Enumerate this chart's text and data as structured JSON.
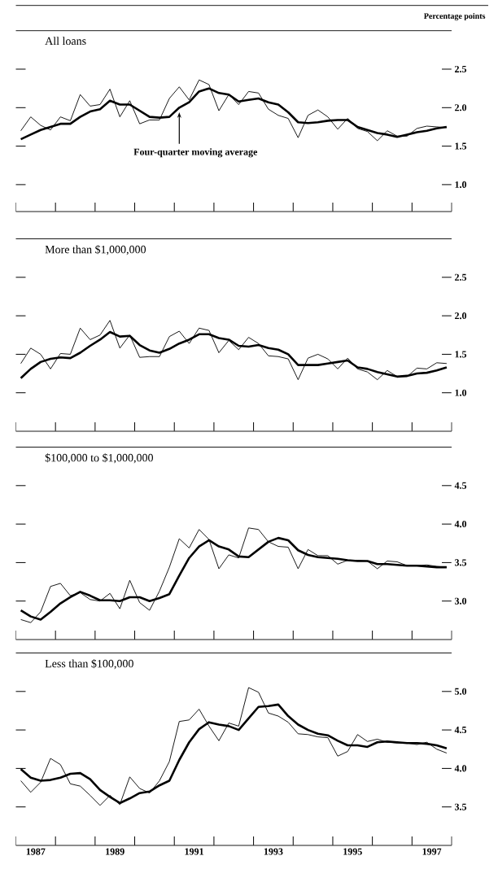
{
  "chart_data": [
    {
      "type": "line",
      "title": "All loans",
      "ylabel": "Percentage points",
      "xlim": [
        1987,
        1998
      ],
      "ylim": [
        0.65,
        3.0
      ],
      "tick_labels": "y",
      "xticks": [
        {
          "value": 1987,
          "label": null
        },
        {
          "value": 1988,
          "label": null
        },
        {
          "value": 1989,
          "label": null
        },
        {
          "value": 1990,
          "label": null
        },
        {
          "value": 1991,
          "label": null
        },
        {
          "value": 1992,
          "label": null
        },
        {
          "value": 1993,
          "label": null
        },
        {
          "value": 1994,
          "label": null
        },
        {
          "value": 1995,
          "label": null
        },
        {
          "value": 1996,
          "label": null
        },
        {
          "value": 1997,
          "label": null
        },
        {
          "value": 1998,
          "label": null
        }
      ],
      "yticks": [
        {
          "value": 1.0,
          "label": "1.0"
        },
        {
          "value": 1.5,
          "label": "1.5"
        },
        {
          "value": 2.0,
          "label": "2.0"
        },
        {
          "value": 2.5,
          "label": "2.5"
        }
      ],
      "x": [
        1987.125,
        1987.375,
        1987.625,
        1987.875,
        1988.125,
        1988.375,
        1988.625,
        1988.875,
        1989.125,
        1989.375,
        1989.625,
        1989.875,
        1990.125,
        1990.375,
        1990.625,
        1990.875,
        1991.125,
        1991.375,
        1991.625,
        1991.875,
        1992.125,
        1992.375,
        1992.625,
        1992.875,
        1993.125,
        1993.375,
        1993.625,
        1993.875,
        1994.125,
        1994.375,
        1994.625,
        1994.875,
        1995.125,
        1995.375,
        1995.625,
        1995.875,
        1996.125,
        1996.375,
        1996.625,
        1996.875,
        1997.125,
        1997.375,
        1997.625,
        1997.875
      ],
      "series": [
        {
          "color": "#000000",
          "values": [
            1.7,
            1.88,
            1.77,
            1.71,
            1.88,
            1.83,
            2.17,
            2.02,
            2.04,
            2.24,
            1.88,
            2.09,
            1.79,
            1.84,
            1.84,
            2.12,
            2.27,
            2.1,
            2.36,
            2.3,
            1.96,
            2.17,
            2.04,
            2.21,
            2.19,
            1.98,
            1.9,
            1.86,
            1.61,
            1.9,
            1.97,
            1.88,
            1.72,
            1.86,
            1.73,
            1.69,
            1.57,
            1.7,
            1.63,
            1.63,
            1.73,
            1.76,
            1.75,
            1.74
          ]
        },
        {
          "name": "Four-quarter moving average",
          "color": "#000000",
          "values": [
            1.59,
            1.65,
            1.71,
            1.75,
            1.79,
            1.79,
            1.88,
            1.95,
            1.98,
            2.09,
            2.04,
            2.04,
            1.96,
            1.88,
            1.87,
            1.88,
            2.0,
            2.07,
            2.21,
            2.25,
            2.19,
            2.17,
            2.08,
            2.1,
            2.12,
            2.07,
            2.04,
            1.94,
            1.81,
            1.8,
            1.81,
            1.83,
            1.84,
            1.84,
            1.75,
            1.71,
            1.67,
            1.65,
            1.62,
            1.65,
            1.68,
            1.7,
            1.73,
            1.75
          ]
        }
      ]
    },
    {
      "type": "line",
      "title": "More than $1,000,000",
      "xlim": [
        1987,
        1998
      ],
      "ylim": [
        0.5,
        3.0
      ],
      "tick_labels": "y",
      "xticks": [
        {
          "value": 1987,
          "label": null
        },
        {
          "value": 1988,
          "label": null
        },
        {
          "value": 1989,
          "label": null
        },
        {
          "value": 1990,
          "label": null
        },
        {
          "value": 1991,
          "label": null
        },
        {
          "value": 1992,
          "label": null
        },
        {
          "value": 1993,
          "label": null
        },
        {
          "value": 1994,
          "label": null
        },
        {
          "value": 1995,
          "label": null
        },
        {
          "value": 1996,
          "label": null
        },
        {
          "value": 1997,
          "label": null
        },
        {
          "value": 1998,
          "label": null
        }
      ],
      "yticks": [
        {
          "value": 1.0,
          "label": "1.0"
        },
        {
          "value": 1.5,
          "label": "1.5"
        },
        {
          "value": 2.0,
          "label": "2.0"
        },
        {
          "value": 2.5,
          "label": "2.5"
        }
      ],
      "x": [
        1987.125,
        1987.375,
        1987.625,
        1987.875,
        1988.125,
        1988.375,
        1988.625,
        1988.875,
        1989.125,
        1989.375,
        1989.625,
        1989.875,
        1990.125,
        1990.375,
        1990.625,
        1990.875,
        1991.125,
        1991.375,
        1991.625,
        1991.875,
        1992.125,
        1992.375,
        1992.625,
        1992.875,
        1993.125,
        1993.375,
        1993.625,
        1993.875,
        1994.125,
        1994.375,
        1994.625,
        1994.875,
        1995.125,
        1995.375,
        1995.625,
        1995.875,
        1996.125,
        1996.375,
        1996.625,
        1996.875,
        1997.125,
        1997.375,
        1997.625,
        1997.875
      ],
      "series": [
        {
          "color": "#000000",
          "values": [
            1.38,
            1.58,
            1.5,
            1.31,
            1.51,
            1.5,
            1.84,
            1.69,
            1.75,
            1.94,
            1.58,
            1.75,
            1.46,
            1.47,
            1.47,
            1.73,
            1.8,
            1.64,
            1.84,
            1.81,
            1.52,
            1.68,
            1.56,
            1.72,
            1.64,
            1.48,
            1.47,
            1.44,
            1.17,
            1.45,
            1.5,
            1.44,
            1.31,
            1.45,
            1.31,
            1.27,
            1.17,
            1.29,
            1.21,
            1.21,
            1.32,
            1.31,
            1.39,
            1.38
          ]
        },
        {
          "color": "#000000",
          "values": [
            1.19,
            1.31,
            1.4,
            1.44,
            1.46,
            1.45,
            1.52,
            1.61,
            1.69,
            1.79,
            1.73,
            1.74,
            1.62,
            1.55,
            1.52,
            1.57,
            1.64,
            1.69,
            1.76,
            1.76,
            1.71,
            1.69,
            1.61,
            1.6,
            1.62,
            1.58,
            1.56,
            1.5,
            1.36,
            1.36,
            1.36,
            1.38,
            1.4,
            1.42,
            1.33,
            1.31,
            1.27,
            1.24,
            1.21,
            1.22,
            1.25,
            1.26,
            1.29,
            1.33
          ]
        }
      ]
    },
    {
      "type": "line",
      "title": "$100,000 to $1,000,000",
      "xlim": [
        1987,
        1998
      ],
      "ylim": [
        2.5,
        5.0
      ],
      "tick_labels": "y",
      "xticks": [
        {
          "value": 1987,
          "label": null
        },
        {
          "value": 1988,
          "label": null
        },
        {
          "value": 1989,
          "label": null
        },
        {
          "value": 1990,
          "label": null
        },
        {
          "value": 1991,
          "label": null
        },
        {
          "value": 1992,
          "label": null
        },
        {
          "value": 1993,
          "label": null
        },
        {
          "value": 1994,
          "label": null
        },
        {
          "value": 1995,
          "label": null
        },
        {
          "value": 1996,
          "label": null
        },
        {
          "value": 1997,
          "label": null
        },
        {
          "value": 1998,
          "label": null
        }
      ],
      "yticks": [
        {
          "value": 3.0,
          "label": "3.0"
        },
        {
          "value": 3.5,
          "label": "3.5"
        },
        {
          "value": 4.0,
          "label": "4.0"
        },
        {
          "value": 4.5,
          "label": "4.5"
        }
      ],
      "x": [
        1987.125,
        1987.375,
        1987.625,
        1987.875,
        1988.125,
        1988.375,
        1988.625,
        1988.875,
        1989.125,
        1989.375,
        1989.625,
        1989.875,
        1990.125,
        1990.375,
        1990.625,
        1990.875,
        1991.125,
        1991.375,
        1991.625,
        1991.875,
        1992.125,
        1992.375,
        1992.625,
        1992.875,
        1993.125,
        1993.375,
        1993.625,
        1993.875,
        1994.125,
        1994.375,
        1994.625,
        1994.875,
        1995.125,
        1995.375,
        1995.625,
        1995.875,
        1996.125,
        1996.375,
        1996.625,
        1996.875,
        1997.125,
        1997.375,
        1997.625,
        1997.875
      ],
      "series": [
        {
          "color": "#000000",
          "values": [
            2.76,
            2.72,
            2.86,
            3.19,
            3.23,
            3.07,
            3.11,
            3.02,
            3.0,
            3.1,
            2.9,
            3.27,
            2.98,
            2.88,
            3.13,
            3.44,
            3.81,
            3.69,
            3.93,
            3.8,
            3.42,
            3.6,
            3.56,
            3.95,
            3.93,
            3.77,
            3.71,
            3.7,
            3.42,
            3.67,
            3.59,
            3.59,
            3.48,
            3.53,
            3.53,
            3.52,
            3.42,
            3.52,
            3.51,
            3.46,
            3.46,
            3.47,
            3.45,
            3.44
          ]
        },
        {
          "color": "#000000",
          "values": [
            2.88,
            2.8,
            2.76,
            2.86,
            2.97,
            3.05,
            3.12,
            3.07,
            3.01,
            3.01,
            3.0,
            3.05,
            3.05,
            3.0,
            3.04,
            3.09,
            3.33,
            3.56,
            3.71,
            3.79,
            3.71,
            3.67,
            3.58,
            3.57,
            3.67,
            3.77,
            3.82,
            3.79,
            3.66,
            3.6,
            3.57,
            3.56,
            3.55,
            3.53,
            3.52,
            3.52,
            3.48,
            3.48,
            3.47,
            3.46,
            3.46,
            3.45,
            3.44,
            3.44
          ]
        }
      ]
    },
    {
      "type": "line",
      "title": "Less than $100,000",
      "xlim": [
        1987,
        1998
      ],
      "ylim": [
        3.0,
        5.5
      ],
      "xticks": [
        {
          "value": 1987,
          "label": null
        },
        {
          "value": 1987.5,
          "label": "1987"
        },
        {
          "value": 1988,
          "label": null
        },
        {
          "value": 1989,
          "label": null
        },
        {
          "value": 1989.5,
          "label": "1989"
        },
        {
          "value": 1990,
          "label": null
        },
        {
          "value": 1991,
          "label": null
        },
        {
          "value": 1991.5,
          "label": "1991"
        },
        {
          "value": 1992,
          "label": null
        },
        {
          "value": 1993,
          "label": null
        },
        {
          "value": 1993.5,
          "label": "1993"
        },
        {
          "value": 1994,
          "label": null
        },
        {
          "value": 1995,
          "label": null
        },
        {
          "value": 1995.5,
          "label": "1995"
        },
        {
          "value": 1996,
          "label": null
        },
        {
          "value": 1997,
          "label": null
        },
        {
          "value": 1997.5,
          "label": "1997"
        },
        {
          "value": 1998,
          "label": null
        }
      ],
      "yticks": [
        {
          "value": 3.5,
          "label": "3.5"
        },
        {
          "value": 4.0,
          "label": "4.0"
        },
        {
          "value": 4.5,
          "label": "4.5"
        },
        {
          "value": 5.0,
          "label": "5.0"
        }
      ],
      "x": [
        1987.125,
        1987.375,
        1987.625,
        1987.875,
        1988.125,
        1988.375,
        1988.625,
        1988.875,
        1989.125,
        1989.375,
        1989.625,
        1989.875,
        1990.125,
        1990.375,
        1990.625,
        1990.875,
        1991.125,
        1991.375,
        1991.625,
        1991.875,
        1992.125,
        1992.375,
        1992.625,
        1992.875,
        1993.125,
        1993.375,
        1993.625,
        1993.875,
        1994.125,
        1994.375,
        1994.625,
        1994.875,
        1995.125,
        1995.375,
        1995.625,
        1995.875,
        1996.125,
        1996.375,
        1996.625,
        1996.875,
        1997.125,
        1997.375,
        1997.625,
        1997.875
      ],
      "series": [
        {
          "color": "#000000",
          "values": [
            3.84,
            3.69,
            3.82,
            4.13,
            4.05,
            3.8,
            3.77,
            3.65,
            3.52,
            3.65,
            3.53,
            3.89,
            3.74,
            3.68,
            3.84,
            4.09,
            4.61,
            4.63,
            4.77,
            4.55,
            4.36,
            4.59,
            4.55,
            5.05,
            4.99,
            4.72,
            4.68,
            4.6,
            4.45,
            4.44,
            4.41,
            4.4,
            4.16,
            4.22,
            4.44,
            4.35,
            4.38,
            4.34,
            4.33,
            4.33,
            4.31,
            4.34,
            4.25,
            4.2
          ]
        },
        {
          "color": "#000000",
          "values": [
            3.99,
            3.88,
            3.84,
            3.85,
            3.88,
            3.93,
            3.94,
            3.86,
            3.72,
            3.63,
            3.55,
            3.61,
            3.68,
            3.7,
            3.78,
            3.84,
            4.11,
            4.34,
            4.51,
            4.6,
            4.57,
            4.55,
            4.5,
            4.65,
            4.8,
            4.81,
            4.83,
            4.68,
            4.57,
            4.5,
            4.45,
            4.43,
            4.36,
            4.3,
            4.3,
            4.28,
            4.34,
            4.35,
            4.34,
            4.33,
            4.33,
            4.32,
            4.3,
            4.26
          ]
        }
      ]
    }
  ]
}
